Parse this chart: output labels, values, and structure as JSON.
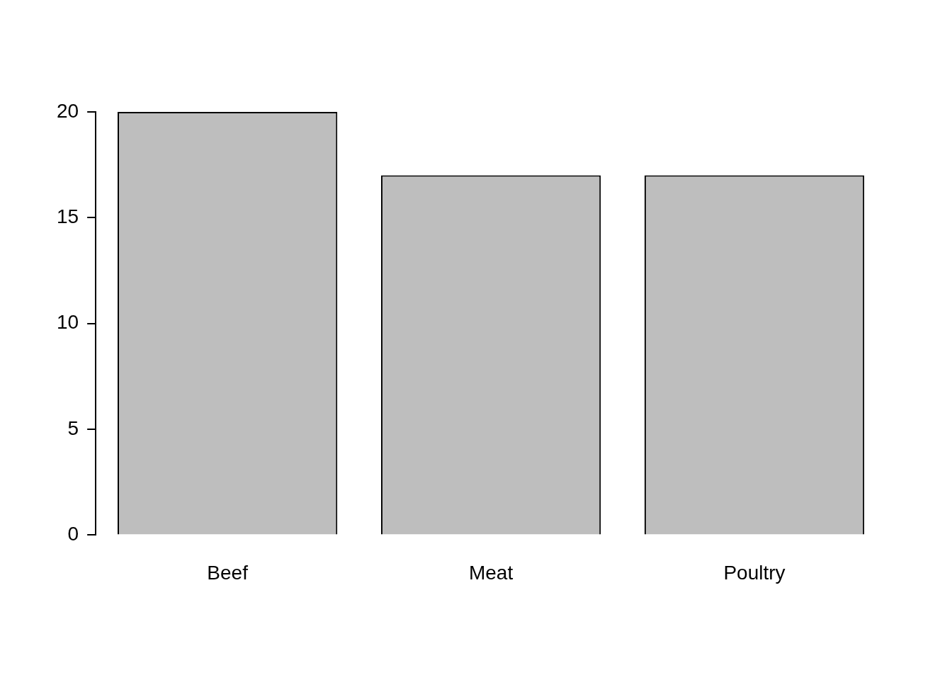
{
  "chart_data": {
    "type": "bar",
    "categories": [
      "Beef",
      "Meat",
      "Poultry"
    ],
    "values": [
      20,
      17,
      17
    ],
    "color": "#bebebe",
    "ylim": [
      0,
      20
    ],
    "yticks": [
      0,
      5,
      10,
      15,
      20
    ]
  }
}
